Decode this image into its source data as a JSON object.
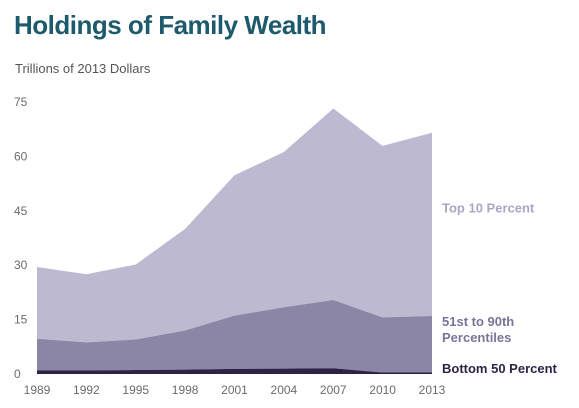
{
  "title": "Holdings of Family Wealth",
  "subtitle": "Trillions of 2013 Dollars",
  "chart_data": {
    "type": "area",
    "stacked": true,
    "title": "Holdings of Family Wealth",
    "ylabel": "Trillions of 2013 Dollars",
    "xlabel": "",
    "x": [
      1989,
      1992,
      1995,
      1998,
      2001,
      2004,
      2007,
      2010,
      2013
    ],
    "ylim": [
      0,
      75
    ],
    "yticks": [
      0,
      15,
      30,
      45,
      60,
      75
    ],
    "grid": false,
    "legend": "inline-right",
    "series": [
      {
        "name": "Bottom 50 Percent",
        "color": "#2e2346",
        "label_color": "#2e2346",
        "values": [
          1.0,
          1.0,
          1.1,
          1.2,
          1.4,
          1.5,
          1.6,
          0.4,
          0.4
        ]
      },
      {
        "name": "51st to 90th Percentiles",
        "color": "#8b86a6",
        "label_color": "#7a7497",
        "values": [
          8.7,
          7.7,
          8.4,
          10.8,
          14.7,
          16.9,
          18.8,
          15.2,
          15.6
        ]
      },
      {
        "name": "Top 10 Percent",
        "color": "#bcb9d1",
        "label_color": "#aaa6c4",
        "values": [
          19.8,
          18.8,
          20.7,
          28.0,
          38.7,
          42.8,
          52.8,
          47.3,
          50.5
        ]
      }
    ]
  }
}
